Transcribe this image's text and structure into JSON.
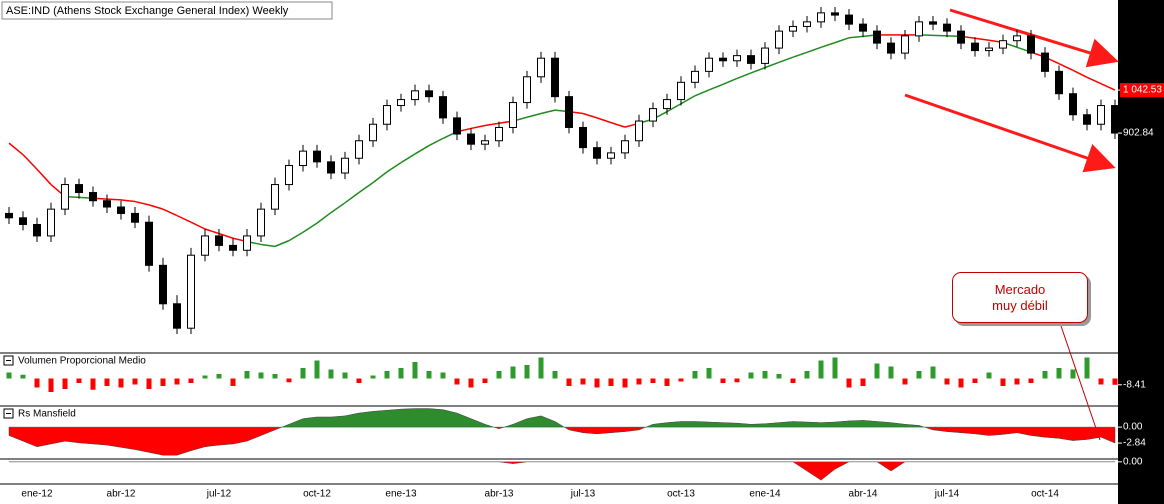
{
  "chart_data": [
    {
      "type": "candlestick",
      "title": "ASE:IND (Athens Stock Exchange General Index) Weekly",
      "annotation": "Mercado muy débil",
      "categories": [
        null,
        null,
        "ene-12",
        null,
        null,
        null,
        null,
        null,
        "abr-12",
        null,
        null,
        null,
        null,
        null,
        null,
        "jul-12",
        null,
        null,
        null,
        null,
        null,
        null,
        "oct-12",
        null,
        null,
        null,
        null,
        null,
        "ene-13",
        null,
        null,
        null,
        null,
        null,
        null,
        "abr-13",
        null,
        null,
        null,
        null,
        null,
        "jul-13",
        null,
        null,
        null,
        null,
        null,
        null,
        "oct-13",
        null,
        null,
        null,
        null,
        null,
        "ene-14",
        null,
        null,
        null,
        null,
        null,
        null,
        "abr-14",
        null,
        null,
        null,
        null,
        null,
        "jul-14",
        null,
        null,
        null,
        null,
        null,
        null,
        "oct-14",
        null,
        null,
        null,
        null,
        null
      ],
      "open": [
        690,
        680,
        665,
        640,
        700,
        760,
        740,
        720,
        705,
        690,
        670,
        580,
        510,
        470,
        600,
        640,
        620,
        610,
        640,
        700,
        760,
        810,
        850,
        820,
        790,
        830,
        880,
        930,
        990,
        1010,
        1040,
        1020,
        950,
        900,
        870,
        880,
        920,
        1000,
        1090,
        1160,
        1020,
        920,
        860,
        830,
        845,
        880,
        940,
        980,
        1010,
        1070,
        1110,
        1160,
        1150,
        1170,
        1140,
        1200,
        1270,
        1290,
        1310,
        1350,
        1340,
        1300,
        1270,
        1220,
        1180,
        1250,
        1310,
        1300,
        1270,
        1220,
        1190,
        1200,
        1230,
        1250,
        1180,
        1110,
        1030,
        960,
        930,
        990
      ],
      "high": [
        705,
        695,
        680,
        715,
        778,
        775,
        755,
        735,
        720,
        705,
        685,
        595,
        525,
        615,
        655,
        655,
        635,
        655,
        715,
        778,
        826,
        868,
        868,
        838,
        848,
        898,
        950,
        1010,
        1030,
        1062,
        1062,
        1040,
        970,
        918,
        898,
        938,
        1020,
        1112,
        1185,
        1185,
        1040,
        938,
        878,
        862,
        898,
        960,
        1000,
        1030,
        1092,
        1132,
        1183,
        1183,
        1194,
        1194,
        1224,
        1295,
        1316,
        1336,
        1377,
        1377,
        1367,
        1326,
        1295,
        1244,
        1275,
        1336,
        1336,
        1326,
        1295,
        1244,
        1224,
        1255,
        1275,
        1275,
        1204,
        1132,
        1051,
        979,
        1010,
        1010
      ],
      "low": [
        666,
        652,
        627,
        627,
        686,
        725,
        706,
        691,
        676,
        657,
        568,
        500,
        461,
        461,
        588,
        608,
        598,
        598,
        627,
        686,
        745,
        794,
        804,
        774,
        774,
        813,
        862,
        911,
        970,
        990,
        1000,
        931,
        882,
        853,
        853,
        862,
        902,
        980,
        1068,
        1000,
        902,
        843,
        813,
        813,
        828,
        862,
        921,
        960,
        990,
        1049,
        1088,
        1127,
        1127,
        1117,
        1117,
        1176,
        1245,
        1264,
        1284,
        1313,
        1274,
        1245,
        1196,
        1156,
        1156,
        1225,
        1274,
        1245,
        1196,
        1166,
        1166,
        1176,
        1205,
        1156,
        1088,
        1009,
        941,
        911,
        911,
        885
      ],
      "close": [
        680,
        665,
        640,
        700,
        760,
        740,
        720,
        705,
        690,
        670,
        580,
        510,
        470,
        600,
        640,
        620,
        610,
        640,
        700,
        760,
        810,
        850,
        820,
        790,
        830,
        880,
        930,
        990,
        1010,
        1040,
        1020,
        950,
        900,
        870,
        880,
        920,
        1000,
        1090,
        1160,
        1020,
        920,
        860,
        830,
        845,
        880,
        940,
        980,
        1010,
        1070,
        1110,
        1160,
        1150,
        1170,
        1140,
        1200,
        1270,
        1290,
        1310,
        1350,
        1340,
        1300,
        1270,
        1220,
        1180,
        1250,
        1310,
        1300,
        1270,
        1220,
        1190,
        1200,
        1230,
        1250,
        1180,
        1110,
        1030,
        960,
        930,
        990,
        903
      ],
      "ma": {
        "values": [
          873,
          840,
          800,
          760,
          730,
          728,
          726,
          724,
          722,
          718,
          710,
          700,
          685,
          670,
          655,
          645,
          635,
          628,
          622,
          618,
          630,
          648,
          668,
          692,
          715,
          740,
          765,
          793,
          818,
          842,
          866,
          887,
          907,
          917,
          926,
          933,
          940,
          952,
          964,
          975,
          970,
          964,
          950,
          935,
          921,
          933,
          946,
          970,
          996,
          1023,
          1043,
          1063,
          1084,
          1104,
          1124,
          1144,
          1164,
          1183,
          1203,
          1222,
          1242,
          1248,
          1254,
          1254,
          1254,
          1254,
          1252,
          1250,
          1248,
          1240,
          1232,
          1223,
          1203,
          1184,
          1164,
          1139,
          1114,
          1088,
          1065,
          1042.53
        ],
        "color_above": "#1e8c1e",
        "color_below": "#ff0000"
      },
      "up_color": "#ffffff",
      "down_color": "#000000",
      "edge_color": "#000000",
      "log_scale": true,
      "ylim": [
        434,
        1400
      ],
      "yticks": [
        {
          "value": 1042.53,
          "label": "1 042.53"
        },
        902.84
      ]
    },
    {
      "type": "bar",
      "title": "Volumen Proporcional Medio",
      "values": [
        8,
        5,
        -12,
        -18,
        -14,
        -6,
        -15,
        -10,
        -12,
        -8,
        -14,
        -10,
        -8,
        -6,
        4,
        6,
        -10,
        10,
        8,
        6,
        -5,
        14,
        24,
        12,
        8,
        -6,
        4,
        10,
        14,
        22,
        10,
        8,
        -8,
        -12,
        -6,
        10,
        16,
        18,
        28,
        10,
        -10,
        -8,
        -12,
        -10,
        -12,
        -8,
        -6,
        -10,
        -4,
        10,
        14,
        -6,
        -5,
        8,
        10,
        6,
        -6,
        10,
        24,
        28,
        -12,
        -10,
        20,
        16,
        -8,
        10,
        16,
        -8,
        -12,
        -6,
        8,
        -10,
        -8,
        -6,
        10,
        14,
        12,
        28,
        -8,
        -8.41
      ],
      "pos_color": "#2e9a2e",
      "neg_color": "#ff0000",
      "ylim": [
        -34,
        30
      ],
      "yticks": [
        -8.41
      ]
    },
    {
      "type": "area",
      "title": "Rs Mansfield",
      "values": [
        -1.5,
        -2.5,
        -3.5,
        -3,
        -2.5,
        -2.8,
        -3,
        -3.2,
        -3.6,
        -4,
        -4.5,
        -5,
        -5,
        -4.2,
        -3.5,
        -3.2,
        -3,
        -2.5,
        -1.5,
        -0.5,
        0.5,
        1.5,
        1.8,
        1.8,
        2,
        2.5,
        2.8,
        3,
        3.2,
        3.3,
        3.3,
        3.1,
        2.5,
        1.5,
        0.5,
        -0.3,
        0.5,
        1.5,
        2,
        1,
        -0.5,
        -1,
        -1.2,
        -1,
        -0.8,
        -0.5,
        0.5,
        0.8,
        1,
        1,
        0.9,
        0.8,
        0.7,
        0.5,
        0.6,
        0.8,
        1,
        0.9,
        0.8,
        0.9,
        1.1,
        1.2,
        1,
        0.8,
        0.5,
        0.3,
        -0.5,
        -0.8,
        -1,
        -1.2,
        -1.5,
        -1.3,
        -1,
        -1.5,
        -1.8,
        -2,
        -2.4,
        -2.2,
        -1.8,
        -2.84
      ],
      "pos_color": "#2e8b2e",
      "neg_color": "#ff0000",
      "ylim": [
        -5.5,
        3.4
      ],
      "yticks": [
        {
          "value": 0,
          "label": "0.00"
        },
        -2.84
      ]
    },
    {
      "type": "area",
      "values": [
        0,
        0,
        0,
        0,
        0,
        0,
        0,
        0,
        0,
        0,
        0,
        0,
        0,
        0,
        0,
        0,
        0,
        0,
        0,
        0,
        0,
        0,
        0,
        0,
        0,
        0,
        0,
        0,
        0,
        0,
        0,
        0,
        0,
        0,
        0,
        0,
        -0.1,
        0,
        0,
        0,
        0,
        0,
        0,
        0,
        0,
        0,
        0,
        0,
        0,
        0,
        0,
        0,
        0,
        0,
        0,
        0,
        0,
        -0.5,
        -1.0,
        -0.4,
        0,
        0,
        0,
        -0.5,
        0,
        0,
        0,
        0,
        0,
        0,
        0,
        0,
        0,
        0,
        0,
        0,
        0,
        0,
        0,
        0
      ],
      "pos_color": "#2e8b2e",
      "neg_color": "#ff0000",
      "ylim": [
        -1.1,
        0.1
      ],
      "yticks": [
        {
          "value": 0,
          "label": "0.00"
        }
      ]
    }
  ]
}
